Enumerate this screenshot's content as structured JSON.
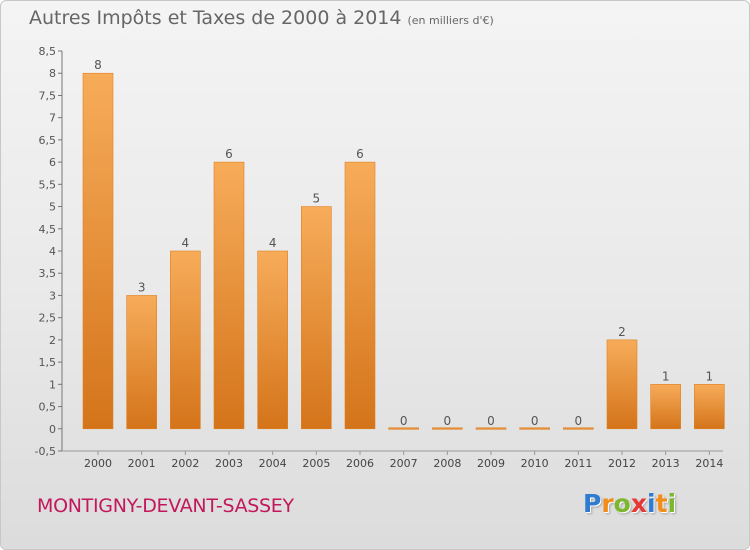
{
  "title": "Autres Impôts et Taxes de 2000 à 2014",
  "subtitle": "(en milliers d'€)",
  "footer": {
    "city": "MONTIGNY-DEVANT-SASSEY"
  },
  "logo": {
    "text": "Proxiti",
    "colors": [
      "#2e7bcf",
      "#f28c1a",
      "#7cb82f",
      "#e53935"
    ]
  },
  "colors": {
    "bar": "#f08a2a",
    "bar_light": "#f7ac5a",
    "bar_dark": "#d4741a"
  },
  "chart_data": {
    "type": "bar",
    "categories": [
      "2000",
      "2001",
      "2002",
      "2003",
      "2004",
      "2005",
      "2006",
      "2007",
      "2008",
      "2009",
      "2010",
      "2011",
      "2012",
      "2013",
      "2014"
    ],
    "values": [
      8,
      3,
      4,
      6,
      4,
      5,
      6,
      0,
      0,
      0,
      0,
      0,
      2,
      1,
      1
    ],
    "data_labels": [
      "8",
      "3",
      "4",
      "6",
      "4",
      "5",
      "6",
      "0",
      "0",
      "0",
      "0",
      "0",
      "2",
      "1",
      "1"
    ],
    "ylim": [
      -0.5,
      8.5
    ],
    "yticks": [
      -0.5,
      0,
      0.5,
      1,
      1.5,
      2,
      2.5,
      3,
      3.5,
      4,
      4.5,
      5,
      5.5,
      6,
      6.5,
      7,
      7.5,
      8,
      8.5
    ],
    "ytick_labels": [
      "-0,5",
      "0",
      "0,5",
      "1",
      "1,5",
      "2",
      "2,5",
      "3",
      "3,5",
      "4",
      "4,5",
      "5",
      "5,5",
      "6",
      "6,5",
      "7",
      "7,5",
      "8",
      "8,5"
    ],
    "grid": false,
    "xlabel": "",
    "ylabel": ""
  }
}
